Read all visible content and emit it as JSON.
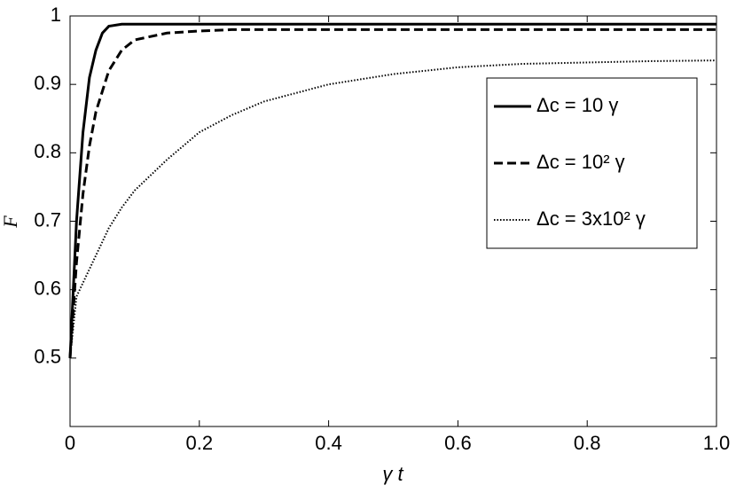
{
  "chart_data": {
    "type": "line",
    "xlabel": "γ t",
    "ylabel": "F",
    "x": [
      0,
      0.01,
      0.02,
      0.03,
      0.04,
      0.05,
      0.06,
      0.08,
      0.1,
      0.15,
      0.2,
      0.25,
      0.3,
      0.4,
      0.5,
      0.6,
      0.7,
      0.8,
      0.9,
      1.0
    ],
    "series": [
      {
        "name": "Δc = 10 γ",
        "color": "#000000",
        "dash": "solid",
        "values": [
          0.5,
          0.7,
          0.83,
          0.91,
          0.95,
          0.975,
          0.985,
          0.988,
          0.988,
          0.988,
          0.988,
          0.988,
          0.988,
          0.988,
          0.988,
          0.988,
          0.988,
          0.988,
          0.988,
          0.988
        ]
      },
      {
        "name": "Δc = 10² γ",
        "color": "#000000",
        "dash": "dashed",
        "values": [
          0.5,
          0.64,
          0.74,
          0.81,
          0.86,
          0.89,
          0.92,
          0.95,
          0.965,
          0.975,
          0.978,
          0.98,
          0.98,
          0.98,
          0.98,
          0.98,
          0.98,
          0.98,
          0.98,
          0.98
        ]
      },
      {
        "name": "Δc = 3x10² γ",
        "color": "#000000",
        "dash": "dotted",
        "values": [
          0.5,
          0.59,
          0.61,
          0.63,
          0.65,
          0.67,
          0.69,
          0.72,
          0.745,
          0.79,
          0.83,
          0.855,
          0.875,
          0.9,
          0.915,
          0.925,
          0.93,
          0.932,
          0.934,
          0.935
        ]
      }
    ],
    "xlim": [
      0,
      1
    ],
    "xticks": [
      0,
      0.2,
      0.4,
      0.6,
      0.8,
      {
        "value": 1,
        "label": "1.0"
      }
    ],
    "ylim": [
      0.4,
      1
    ],
    "yticks": [
      0.5,
      0.6,
      0.7,
      0.8,
      0.9,
      1
    ],
    "grid": false,
    "legend": "upper right"
  }
}
